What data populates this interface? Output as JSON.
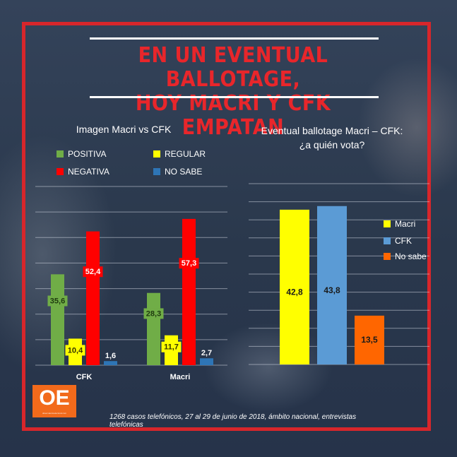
{
  "title": {
    "line1": "EN UN EVENTUAL BALLOTAGE,",
    "line2": "HOY MACRI Y CFK EMPATAN"
  },
  "footer": "1268 casos telefónicos, 27 al 29 de junio de 2018, ámbito nacional, entrevistas telefónicas",
  "logo": {
    "text": "OE",
    "subtext": "observatorioelectoral.com"
  },
  "colors": {
    "frame": "#d8262b",
    "title": "#e8262b",
    "positiva": "#70ad47",
    "regular": "#ffff00",
    "negativa": "#ff0000",
    "no_sabe_left": "#2e75b6",
    "macri": "#ffff00",
    "cfk": "#5b9bd5",
    "no_sabe_right": "#ff6600"
  },
  "chart_data": [
    {
      "type": "bar",
      "title": "Imagen Macri vs CFK",
      "categories": [
        "CFK",
        "Macri"
      ],
      "series": [
        {
          "name": "POSITIVA",
          "values": [
            35.6,
            28.3
          ],
          "labels": [
            "35,6",
            "28,3"
          ]
        },
        {
          "name": "REGULAR",
          "values": [
            10.4,
            11.7
          ],
          "labels": [
            "10,4",
            "11,7"
          ]
        },
        {
          "name": "NEGATIVA",
          "values": [
            52.4,
            57.3
          ],
          "labels": [
            "52,4",
            "57,3"
          ]
        },
        {
          "name": "NO SABE",
          "values": [
            1.6,
            2.7
          ],
          "labels": [
            "1,6",
            "2,7"
          ]
        }
      ],
      "ylim": [
        0,
        70
      ],
      "grid": true,
      "legend_position": "top"
    },
    {
      "type": "bar",
      "title": "Eventual ballotage Macri – CFK:",
      "subtitle": "¿a quién vota?",
      "categories": [
        "Macri",
        "CFK",
        "No sabe"
      ],
      "values": [
        42.8,
        43.8,
        13.5
      ],
      "labels": [
        "42,8",
        "43,8",
        "13,5"
      ],
      "ylim": [
        0,
        50
      ],
      "grid": true,
      "legend_position": "right"
    }
  ]
}
